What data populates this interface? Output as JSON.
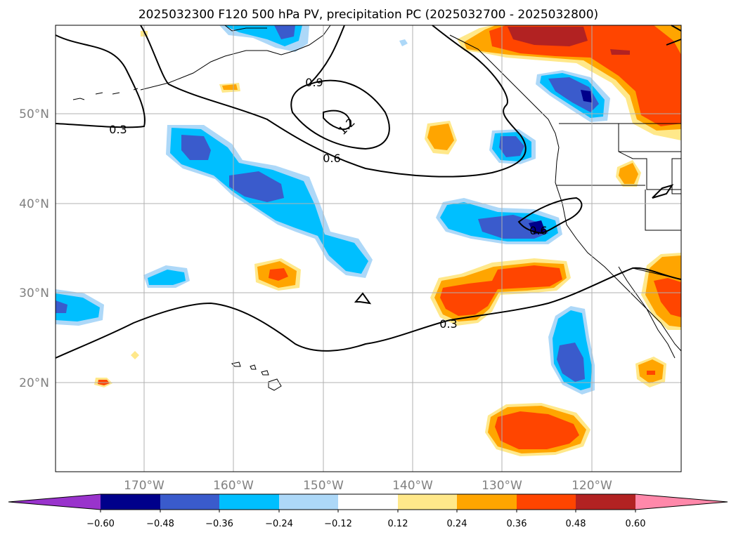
{
  "title": "2025032300 F120 500 hPa PV, precipitation PC (2025032700 - 2025032800)",
  "map": {
    "lon_labels": [
      "170°W",
      "160°W",
      "150°W",
      "140°W",
      "130°W",
      "120°W"
    ],
    "lat_labels": [
      "50°N",
      "40°N",
      "30°N",
      "20°N"
    ],
    "contour_labels": [
      "0.3",
      "0.9",
      "1.2",
      "0.6",
      "0.6",
      "0.3"
    ]
  },
  "colorbar": {
    "ticks": [
      "−0.60",
      "−0.48",
      "−0.36",
      "−0.24",
      "−0.12",
      "0.12",
      "0.24",
      "0.36",
      "0.48",
      "0.60"
    ],
    "colors": [
      "#9933cc",
      "#00008b",
      "#3a5bcc",
      "#00bfff",
      "#add8f8",
      "#ffffff",
      "#ffe88a",
      "#ffa500",
      "#ff4500",
      "#b22222",
      "#ff88aa"
    ]
  },
  "colors": {
    "deep_blue": "#00008b",
    "mid_blue": "#3a5bcc",
    "cyan": "#00bfff",
    "light_blue": "#add8f8",
    "yellow": "#ffe88a",
    "orange": "#ffa500",
    "red_orange": "#ff4500",
    "dark_red": "#b22222",
    "grid": "#b0b0b0"
  }
}
